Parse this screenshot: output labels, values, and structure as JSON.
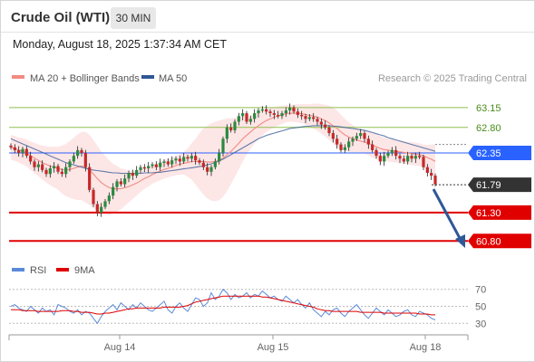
{
  "header": {
    "title": "Crude Oil (WTI)",
    "timeframe": "30 MIN",
    "datetime": "Monday, August 18, 2025 1:37:34 AM CET"
  },
  "legend": {
    "ma20": "MA 20 + Bollinger Bands",
    "ma50": "MA 50",
    "credit": "Research © 2025 Trading Central",
    "rsi": "RSI",
    "rsi_ma": "9MA"
  },
  "colors": {
    "ma20": "#f28b82",
    "ma50": "#2e5797",
    "band": "#fde0e0",
    "support": "#e00000",
    "resistance": "#8fbf4f",
    "pivot": "#2962ff",
    "rsi": "#5b8ad8",
    "candle_up": "#2b8a3e",
    "candle_down": "#c62828"
  },
  "chart_data": {
    "type": "candlestick",
    "x_labels": [
      "Aug 14",
      "Aug 15",
      "Aug 18"
    ],
    "ylim": [
      60.55,
      63.45
    ],
    "levels": [
      {
        "label": "63.15",
        "value": 63.15,
        "kind": "resistance"
      },
      {
        "label": "62.80",
        "value": 62.8,
        "kind": "resistance"
      },
      {
        "label": "62.35",
        "value": 62.35,
        "kind": "pivot"
      },
      {
        "label": "61.79",
        "value": 61.79,
        "kind": "last"
      },
      {
        "label": "61.30",
        "value": 61.3,
        "kind": "support"
      },
      {
        "label": "60.80",
        "value": 60.8,
        "kind": "support"
      }
    ],
    "price_close": [
      62.45,
      62.4,
      62.35,
      62.42,
      62.3,
      62.2,
      62.1,
      62.15,
      62.05,
      61.98,
      62.08,
      62.12,
      62.02,
      61.98,
      62.1,
      62.2,
      62.3,
      62.4,
      62.35,
      62.1,
      61.7,
      61.45,
      61.3,
      61.4,
      61.5,
      61.6,
      61.75,
      61.85,
      61.8,
      61.9,
      62.0,
      61.95,
      62.05,
      62.1,
      62.08,
      62.12,
      62.15,
      62.1,
      62.18,
      62.2,
      62.15,
      62.22,
      62.25,
      62.2,
      62.28,
      62.25,
      62.3,
      62.22,
      62.18,
      62.1,
      62.02,
      62.1,
      62.2,
      62.35,
      62.6,
      62.8,
      62.75,
      62.9,
      63.0,
      63.05,
      62.9,
      62.95,
      63.05,
      63.1,
      63.12,
      63.08,
      63.05,
      63.02,
      63.0,
      63.05,
      63.1,
      63.15,
      63.08,
      63.02,
      63.0,
      62.95,
      62.98,
      62.95,
      62.9,
      62.85,
      62.8,
      62.7,
      62.6,
      62.5,
      62.4,
      62.45,
      62.55,
      62.6,
      62.65,
      62.7,
      62.6,
      62.5,
      62.4,
      62.3,
      62.2,
      62.3,
      62.35,
      62.4,
      62.3,
      62.25,
      62.2,
      62.3,
      62.25,
      62.3,
      62.28,
      62.1,
      62.0,
      61.95,
      61.8
    ],
    "ma20": [
      62.45,
      62.43,
      62.4,
      62.38,
      62.35,
      62.3,
      62.26,
      62.22,
      62.18,
      62.15,
      62.12,
      62.1,
      62.08,
      62.06,
      62.05,
      62.06,
      62.08,
      62.1,
      62.12,
      62.1,
      62.05,
      61.98,
      61.9,
      61.83,
      61.78,
      61.74,
      61.72,
      61.72,
      61.72,
      61.74,
      61.76,
      61.79,
      61.82,
      61.86,
      61.9,
      61.93,
      61.97,
      62.0,
      62.03,
      62.06,
      62.08,
      62.1,
      62.13,
      62.15,
      62.17,
      62.18,
      62.2,
      62.2,
      62.2,
      62.2,
      62.19,
      62.19,
      62.2,
      62.22,
      62.26,
      62.32,
      62.38,
      62.45,
      62.52,
      62.6,
      62.66,
      62.72,
      62.78,
      62.83,
      62.88,
      62.92,
      62.95,
      62.98,
      63.0,
      63.02,
      63.04,
      63.05,
      63.05,
      63.05,
      63.04,
      63.03,
      63.01,
      63.0,
      62.98,
      62.95,
      62.92,
      62.88,
      62.83,
      62.78,
      62.72,
      62.67,
      62.63,
      62.6,
      62.58,
      62.56,
      62.54,
      62.52,
      62.49,
      62.46,
      62.43,
      62.41,
      62.4,
      62.39,
      62.38,
      62.37,
      62.36,
      62.35,
      62.34,
      62.33,
      62.32,
      62.3,
      62.27,
      62.24,
      62.2
    ],
    "bb_width": [
      0.22,
      0.22,
      0.22,
      0.23,
      0.24,
      0.25,
      0.27,
      0.28,
      0.3,
      0.32,
      0.34,
      0.36,
      0.38,
      0.42,
      0.46,
      0.5,
      0.54,
      0.58,
      0.6,
      0.62,
      0.62,
      0.6,
      0.58,
      0.55,
      0.52,
      0.48,
      0.44,
      0.4,
      0.36,
      0.32,
      0.28,
      0.25,
      0.22,
      0.2,
      0.18,
      0.17,
      0.16,
      0.16,
      0.16,
      0.16,
      0.16,
      0.16,
      0.17,
      0.18,
      0.2,
      0.25,
      0.32,
      0.4,
      0.5,
      0.58,
      0.64,
      0.68,
      0.7,
      0.7,
      0.68,
      0.64,
      0.58,
      0.52,
      0.46,
      0.4,
      0.34,
      0.3,
      0.26,
      0.24,
      0.22,
      0.2,
      0.19,
      0.18,
      0.17,
      0.16,
      0.15,
      0.15,
      0.15,
      0.16,
      0.17,
      0.18,
      0.2,
      0.22,
      0.24,
      0.26,
      0.28,
      0.3,
      0.32,
      0.32,
      0.3,
      0.28,
      0.26,
      0.24,
      0.22,
      0.2,
      0.2,
      0.21,
      0.22,
      0.22,
      0.22,
      0.21,
      0.2,
      0.2,
      0.2,
      0.2,
      0.2,
      0.2,
      0.2,
      0.2,
      0.2,
      0.2,
      0.22,
      0.26,
      0.3
    ],
    "ma50": [
      62.6,
      62.57,
      62.54,
      62.51,
      62.48,
      62.45,
      62.42,
      62.39,
      62.36,
      62.33,
      62.3,
      62.27,
      62.24,
      62.21,
      62.18,
      62.16,
      62.14,
      62.12,
      62.1,
      62.08,
      62.06,
      62.05,
      62.04,
      62.03,
      62.02,
      62.01,
      62.0,
      62.0,
      61.99,
      61.99,
      61.99,
      61.99,
      61.99,
      61.99,
      62.0,
      62.0,
      62.0,
      62.01,
      62.01,
      62.02,
      62.03,
      62.04,
      62.05,
      62.06,
      62.07,
      62.08,
      62.09,
      62.1,
      62.11,
      62.12,
      62.14,
      62.16,
      62.18,
      62.21,
      62.24,
      62.28,
      62.32,
      62.36,
      62.4,
      62.44,
      62.48,
      62.52,
      62.56,
      62.6,
      62.63,
      62.66,
      62.68,
      62.7,
      62.72,
      62.74,
      62.76,
      62.78,
      62.79,
      62.8,
      62.81,
      62.82,
      62.82,
      62.83,
      62.83,
      62.83,
      62.83,
      62.83,
      62.82,
      62.82,
      62.81,
      62.8,
      62.79,
      62.78,
      62.77,
      62.76,
      62.75,
      62.73,
      62.71,
      62.69,
      62.67,
      62.65,
      62.62,
      62.6,
      62.58,
      62.56,
      62.54,
      62.52,
      62.5,
      62.48,
      62.46,
      62.44,
      62.42,
      62.4,
      62.38
    ],
    "rsi": {
      "ticks": [
        30,
        50,
        70
      ],
      "ylim": [
        25,
        75
      ],
      "rsi": [
        50,
        52,
        48,
        46,
        44,
        50,
        46,
        42,
        48,
        44,
        46,
        40,
        52,
        50,
        48,
        44,
        42,
        46,
        40,
        44,
        42,
        36,
        30,
        38,
        44,
        48,
        52,
        46,
        54,
        50,
        46,
        52,
        48,
        54,
        50,
        46,
        44,
        48,
        52,
        56,
        46,
        42,
        50,
        54,
        48,
        44,
        52,
        60,
        58,
        50,
        54,
        66,
        58,
        62,
        70,
        66,
        58,
        64,
        60,
        62,
        66,
        60,
        64,
        62,
        68,
        64,
        60,
        62,
        58,
        56,
        62,
        58,
        54,
        58,
        52,
        48,
        54,
        46,
        42,
        38,
        44,
        40,
        46,
        48,
        42,
        38,
        44,
        48,
        52,
        46,
        40,
        36,
        42,
        48,
        44,
        40,
        46,
        42,
        38,
        40,
        44,
        46,
        40,
        38,
        44,
        42,
        40,
        36,
        34
      ],
      "ma": [
        46,
        46,
        46,
        45,
        45,
        45,
        45,
        44,
        44,
        44,
        44,
        44,
        44,
        45,
        45,
        45,
        44,
        44,
        43,
        43,
        43,
        42,
        41,
        41,
        42,
        42,
        43,
        44,
        45,
        46,
        47,
        47,
        48,
        48,
        48,
        48,
        48,
        48,
        48,
        49,
        49,
        49,
        49,
        49,
        50,
        51,
        53,
        55,
        56,
        57,
        58,
        59,
        60,
        61,
        62,
        62,
        62,
        62,
        62,
        62,
        62,
        62,
        62,
        62,
        61,
        61,
        60,
        59,
        58,
        57,
        56,
        55,
        54,
        53,
        52,
        51,
        50,
        49,
        47,
        46,
        45,
        45,
        44,
        44,
        44,
        44,
        44,
        44,
        44,
        43,
        43,
        43,
        43,
        43,
        43,
        42,
        42,
        42,
        42,
        42,
        42,
        42,
        42,
        42,
        41,
        41,
        41,
        40,
        40
      ]
    }
  }
}
